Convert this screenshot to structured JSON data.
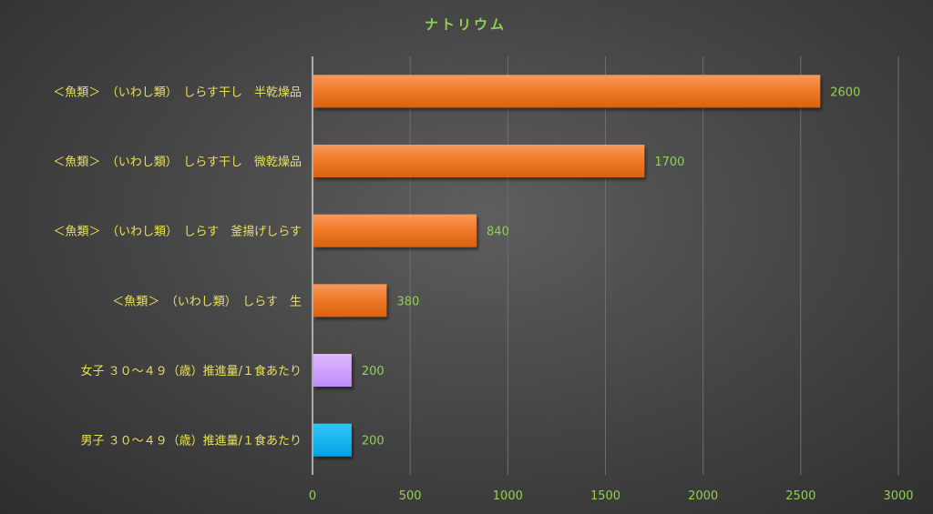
{
  "chart_data": {
    "type": "bar",
    "orientation": "horizontal",
    "title": "ナトリウム",
    "categories": [
      "＜魚類＞　（いわし類）　しらす干し　半乾燥品",
      "＜魚類＞　（いわし類）　しらす干し　微乾燥品",
      "＜魚類＞　（いわし類）　しらす　釜揚げしらす",
      "＜魚類＞　（いわし類）　しらす　生",
      "女子 ３０～４９（歳）推進量/１食あたり",
      "男子 ３０～４９（歳）推進量/１食あたり"
    ],
    "values": [
      2600,
      1700,
      840,
      380,
      200,
      200
    ],
    "data_labels": [
      "2600",
      "1700",
      "840",
      "380",
      "200",
      "200"
    ],
    "bar_colors": [
      "#f07a2a",
      "#f07a2a",
      "#f07a2a",
      "#f07a2a",
      "#cc99ff",
      "#00b0f0"
    ],
    "xlim": [
      0,
      3000
    ],
    "xticks": [
      0,
      500,
      1000,
      1500,
      2000,
      2500,
      3000
    ],
    "xtick_labels": [
      "0",
      "500",
      "1000",
      "1500",
      "2000",
      "2500",
      "3000"
    ],
    "xlabel": "",
    "ylabel": "",
    "grid": true,
    "legend": "none"
  }
}
